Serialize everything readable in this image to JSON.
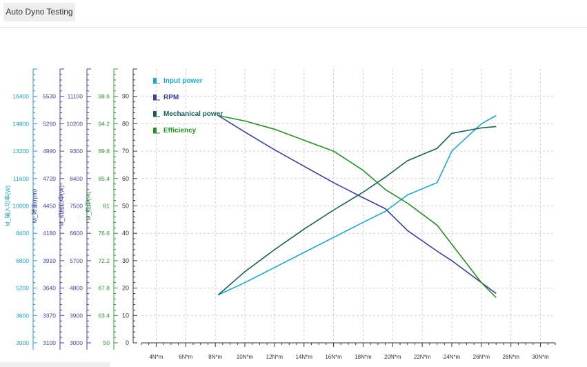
{
  "window": {
    "tab_title": "Auto Dyno Testing"
  },
  "chart_data": {
    "type": "line",
    "title": "",
    "x": [
      8.2,
      10,
      12,
      14,
      16,
      18,
      19.5,
      21,
      23,
      24,
      26,
      27
    ],
    "xlabel": "",
    "xlim": [
      3,
      31
    ],
    "x_ticks": [
      {
        "value": 4,
        "label": "4N*m"
      },
      {
        "value": 6,
        "label": "6N*m"
      },
      {
        "value": 8,
        "label": "8N*m"
      },
      {
        "value": 10,
        "label": "10N*m"
      },
      {
        "value": 12,
        "label": "12N*m"
      },
      {
        "value": 14,
        "label": "14N*m"
      },
      {
        "value": 16,
        "label": "16N*m"
      },
      {
        "value": 18,
        "label": "18N*m"
      },
      {
        "value": 20,
        "label": "20N*m"
      },
      {
        "value": 22,
        "label": "22N*m"
      },
      {
        "value": 24,
        "label": "24N*m"
      },
      {
        "value": 26,
        "label": "26N*m"
      },
      {
        "value": 28,
        "label": "28N*m"
      },
      {
        "value": 30,
        "label": "30N*m"
      }
    ],
    "grid": true,
    "legend_position": "top-left",
    "main_axis": {
      "range": [
        0,
        100
      ],
      "ticks": [
        0,
        10,
        20,
        30,
        40,
        50,
        60,
        70,
        80,
        90
      ]
    },
    "y_axes": [
      {
        "label": "M_输入功率(W)",
        "color": "#1ba1c9",
        "ticks": [
          "2000",
          "3600",
          "5200",
          "6800",
          "8400",
          "10000",
          "11600",
          "13200",
          "14800",
          "16400"
        ]
      },
      {
        "label": "M_转速(rpm)",
        "color": "#4545a5",
        "ticks": [
          "3100",
          "3370",
          "3640",
          "3910",
          "4180",
          "4450",
          "4720",
          "4990",
          "5260",
          "5530"
        ]
      },
      {
        "label": "M_机械功率(W)",
        "color": "#4545a5",
        "ticks": [
          "3000",
          "3900",
          "4800",
          "5700",
          "6600",
          "7500",
          "8400",
          "9300",
          "10200",
          "11100"
        ]
      },
      {
        "label": "M_效率(%)",
        "color": "#2e9a2e",
        "ticks": [
          "50",
          "63.4",
          "67.8",
          "72.2",
          "76.6",
          "81",
          "85.4",
          "89.8",
          "94.2",
          "98.6"
        ]
      }
    ],
    "series": [
      {
        "name": "Input power",
        "color": "#1ba8cf",
        "values": [
          17.5,
          22,
          27.5,
          33,
          38.5,
          44,
          48,
          54,
          58.5,
          70,
          80,
          83
        ]
      },
      {
        "name": "RPM",
        "color": "#3b3f9e",
        "values": [
          83,
          77,
          70.5,
          64.5,
          58.5,
          53,
          49,
          41,
          33.5,
          30,
          22,
          18
        ]
      },
      {
        "name": "Mechanical power",
        "color": "#1a5e57",
        "values": [
          17.5,
          26,
          34,
          41.5,
          48.5,
          55,
          60.5,
          66.5,
          71,
          76.5,
          78.5,
          79
        ]
      },
      {
        "name": "Efficiency",
        "color": "#239023",
        "values": [
          83,
          81,
          78,
          74,
          70,
          63,
          56,
          51,
          43,
          36,
          22,
          16.5
        ]
      }
    ]
  }
}
